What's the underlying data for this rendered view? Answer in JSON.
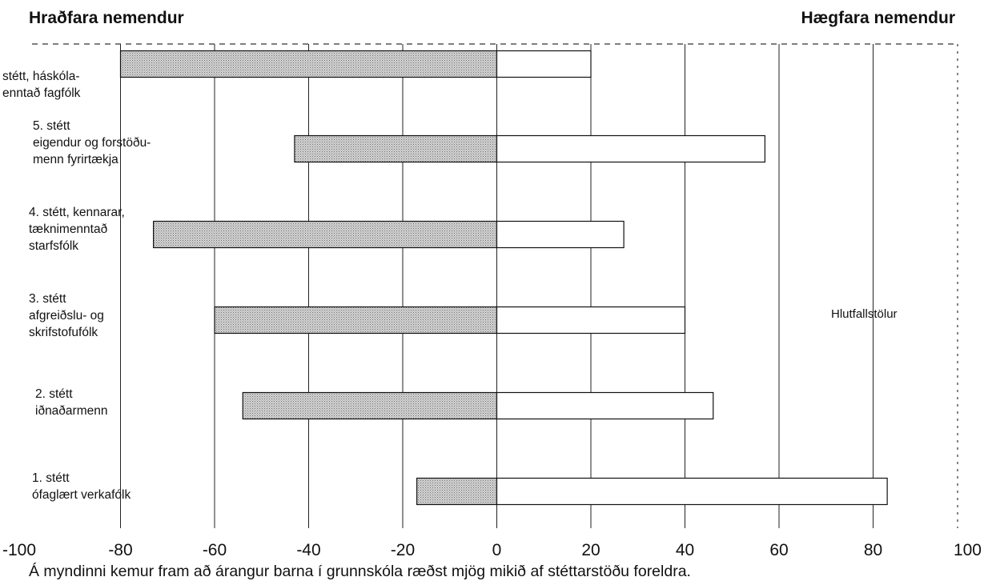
{
  "chart_data": {
    "type": "bar",
    "orientation": "horizontal",
    "left_header": "Hraðfara nemendur",
    "right_header": "Hægfara nemendur",
    "annotation": "Hlutfallstölur",
    "caption": "Á myndinni kemur fram að árangur barna í grunnskóla ræðst mjög mikið af stéttarstöðu foreldra.",
    "xlim": [
      -100,
      100
    ],
    "x_ticks": [
      "-100",
      "-80",
      "-60",
      "-40",
      "-20",
      "0",
      "20",
      "40",
      "60",
      "80",
      "100"
    ],
    "grid": "vertical lines",
    "categories": [
      {
        "lines": [
          "stétt, háskóla-",
          "enntað fagfólk"
        ],
        "fast": -80,
        "slow": 20
      },
      {
        "lines": [
          "5. stétt",
          "eigendur og forstöðu-",
          "menn fyrirtækja"
        ],
        "fast": -43,
        "slow": 57
      },
      {
        "lines": [
          "4. stétt, kennarar,",
          "tæknimenntað",
          "starfsfólk"
        ],
        "fast": -73,
        "slow": 27
      },
      {
        "lines": [
          "3. stétt",
          "afgreiðslu- og",
          "skrifstofufólk"
        ],
        "fast": -60,
        "slow": 40
      },
      {
        "lines": [
          "2. stétt",
          "iðnaðarmenn"
        ],
        "fast": -54,
        "slow": 46
      },
      {
        "lines": [
          "1. stétt",
          "ófaglært verkafólk"
        ],
        "fast": -17,
        "slow": 83
      }
    ],
    "series_colors": {
      "fast": "#c8c8c8",
      "slow": "#ffffff"
    }
  }
}
